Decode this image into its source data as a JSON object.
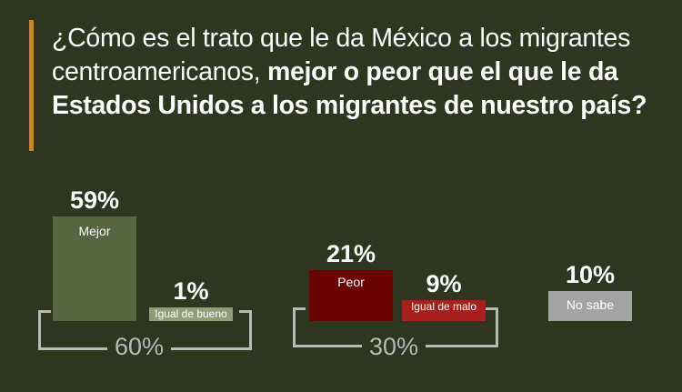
{
  "title": {
    "part1": "¿Cómo es el trato que le da México a los migrantes centroamericanos, ",
    "part2": "mejor o peor que el que le da Estados Unidos a los migrantes de nuestro país?"
  },
  "chart_data": {
    "type": "bar",
    "title": "¿Cómo es el trato que le da México a los migrantes centroamericanos, mejor o peor que el que le da Estados Unidos a los migrantes de nuestro país?",
    "categories": [
      "Mejor",
      "Igual de bueno",
      "Peor",
      "Igual de malo",
      "No sabe"
    ],
    "values": [
      59,
      1,
      21,
      9,
      10
    ],
    "value_labels": [
      "59%",
      "1%",
      "21%",
      "9%",
      "10%"
    ],
    "colors": [
      "#566640",
      "#8f9e77",
      "#6b0503",
      "#a81f1c",
      "#a3a3a3"
    ],
    "groups": [
      {
        "members": [
          "Mejor",
          "Igual de bueno"
        ],
        "total": 60,
        "total_label": "60%"
      },
      {
        "members": [
          "Peor",
          "Igual de malo"
        ],
        "total": 30,
        "total_label": "30%"
      }
    ]
  }
}
